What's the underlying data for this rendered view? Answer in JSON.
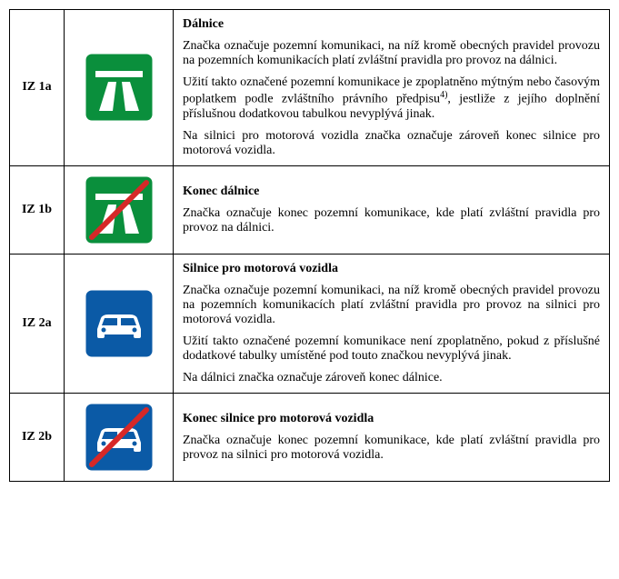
{
  "rows": [
    {
      "code": "IZ 1a",
      "icon": "motorway",
      "title": "Dálnice",
      "paragraphs": [
        "Značka označuje pozemní komunikaci, na níž kromě obecných pravidel provozu na pozemních komunikacích platí zvláštní pravidla pro provoz na dálnici.",
        "Užití takto označené pozemní komunikace je zpoplatněno mýtným nebo časovým poplatkem podle zvláštního právního předpisu{sup4}, jestliže z jejího doplnění příslušnou dodatkovou tabulkou nevyplývá jinak.",
        "Na silnici pro motorová vozidla značka označuje zároveň konec silnice pro motorová vozidla."
      ]
    },
    {
      "code": "IZ 1b",
      "icon": "motorway-end",
      "title": "Konec dálnice",
      "paragraphs": [
        "Značka označuje konec pozemní komunikace, kde platí zvláštní pravidla pro provoz na dálnici."
      ]
    },
    {
      "code": "IZ 2a",
      "icon": "expressway",
      "title": "Silnice pro motorová vozidla",
      "paragraphs": [
        "Značka označuje pozemní komunikaci, na níž kromě obecných pravidel provozu na pozemních komunikacích platí zvláštní pravidla pro provoz na silnici pro motorová vozidla.",
        "Užití takto označené pozemní komunikace není zpoplatněno, pokud z příslušné dodatkové tabulky umístěné pod touto značkou nevyplývá jinak.",
        "Na dálnici značka označuje zároveň konec dálnice."
      ]
    },
    {
      "code": "IZ 2b",
      "icon": "expressway-end",
      "title": "Konec silnice pro motorová vozidla",
      "paragraphs": [
        "Značka označuje konec pozemní komunikace, kde platí zvláštní pravidla pro provoz na silnici pro motorová vozidla."
      ]
    }
  ],
  "colors": {
    "green": "#0a8f3c",
    "blue": "#0b5aa6",
    "white": "#ffffff",
    "red": "#d62828",
    "black": "#000000"
  },
  "footnote_marker": "4)"
}
